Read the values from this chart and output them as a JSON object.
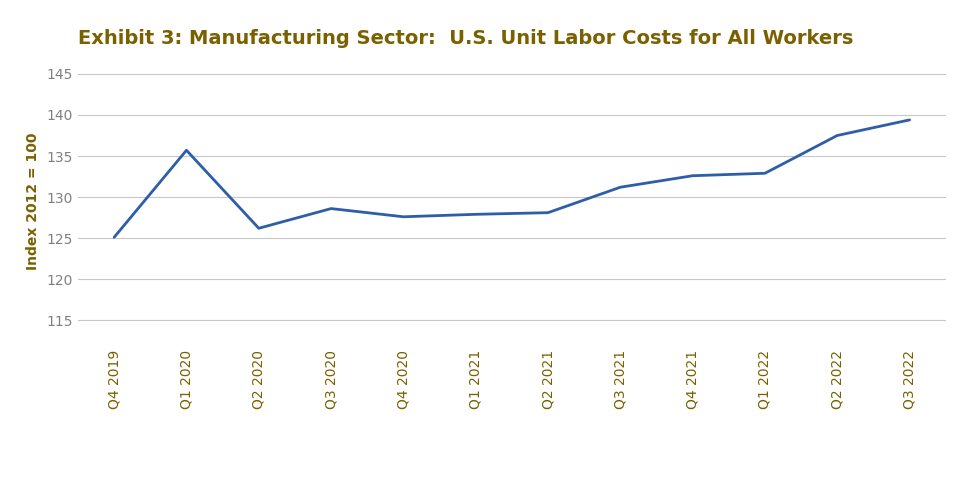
{
  "title": "Exhibit 3: Manufacturing Sector:  U.S. Unit Labor Costs for All Workers",
  "xlabel": "",
  "ylabel": "Index 2012 = 100",
  "categories": [
    "Q4 2019",
    "Q1 2020",
    "Q2 2020",
    "Q3 2020",
    "Q4 2020",
    "Q1 2021",
    "Q2 2021",
    "Q3 2021",
    "Q4 2021",
    "Q1 2022",
    "Q2 2022",
    "Q3 2022"
  ],
  "values": [
    125.1,
    135.7,
    126.2,
    128.6,
    127.6,
    127.9,
    128.1,
    131.2,
    132.6,
    132.9,
    137.5,
    139.4
  ],
  "line_color": "#2E5EA8",
  "title_color": "#7B6000",
  "label_color": "#7B6000",
  "ytick_color": "#808080",
  "xtick_color": "#7B6000",
  "background_color": "#FFFFFF",
  "grid_color": "#C8C8C8",
  "ylim": [
    112,
    147
  ],
  "yticks": [
    115,
    120,
    125,
    130,
    135,
    140,
    145
  ],
  "line_width": 2.0,
  "title_fontsize": 14,
  "ylabel_fontsize": 10,
  "tick_fontsize": 10
}
